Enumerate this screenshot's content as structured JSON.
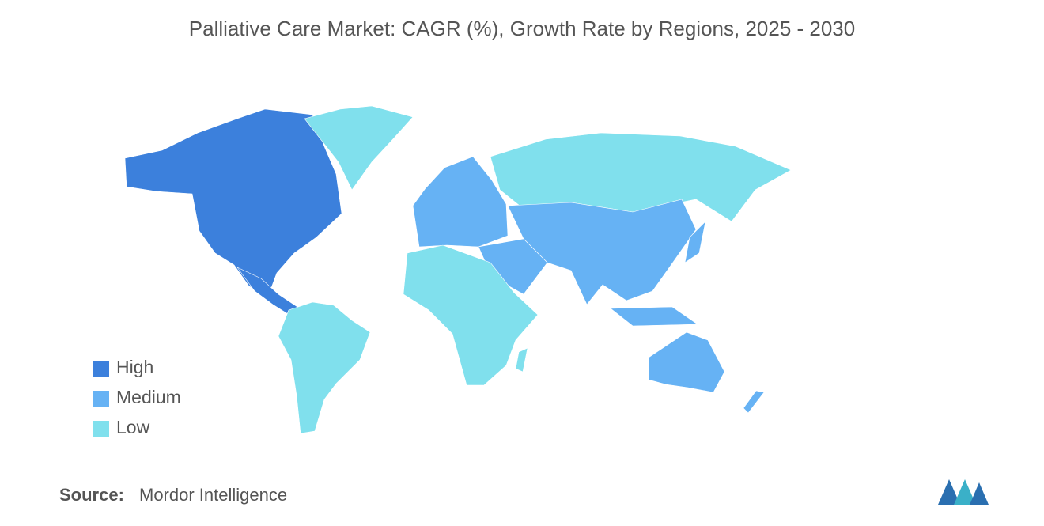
{
  "title": "Palliative Care Market: CAGR (%), Growth Rate by Regions, 2025 - 2030",
  "legend": [
    {
      "label": "High",
      "color": "#3c80dc"
    },
    {
      "label": "Medium",
      "color": "#66b2f4"
    },
    {
      "label": "Low",
      "color": "#80e0ed"
    }
  ],
  "source": {
    "label": "Source:",
    "text": "Mordor Intelligence"
  }
}
